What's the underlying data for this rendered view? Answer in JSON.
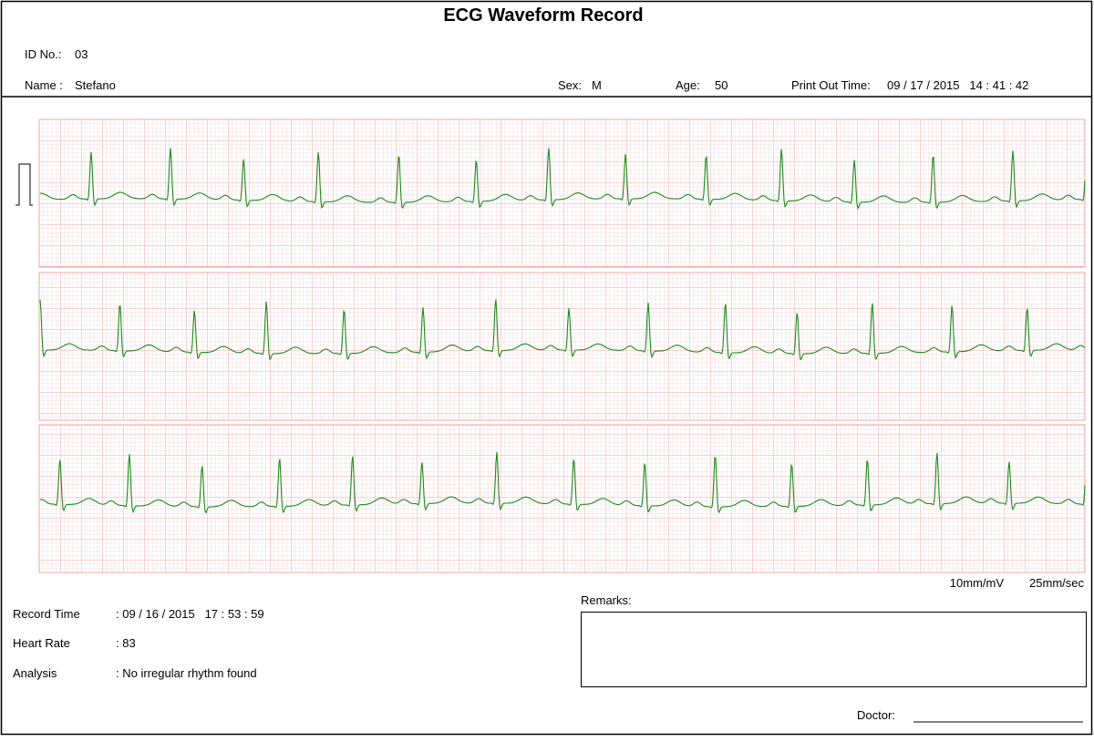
{
  "header": {
    "title": "ECG Waveform Record",
    "id_label": "ID No.:",
    "id": "03",
    "name_label": "Name :",
    "name": "Stefano",
    "sex_label": "Sex:",
    "sex": "M",
    "age_label": "Age:",
    "age": "50",
    "print_label": "Print Out Time:",
    "print_time": "09 / 17 / 2015   14 : 41 : 42"
  },
  "scale": {
    "gain": "10mm/mV",
    "speed": "25mm/sec"
  },
  "info": [
    {
      "label": "Record Time",
      "value": ": 09 / 16 / 2015   17 : 53 : 59"
    },
    {
      "label": "Heart Rate",
      "value": ": 83"
    },
    {
      "label": "Analysis",
      "value": ": No irregular rhythm found"
    }
  ],
  "remarks_label": "Remarks:",
  "doctor_label": "Doctor:"
}
